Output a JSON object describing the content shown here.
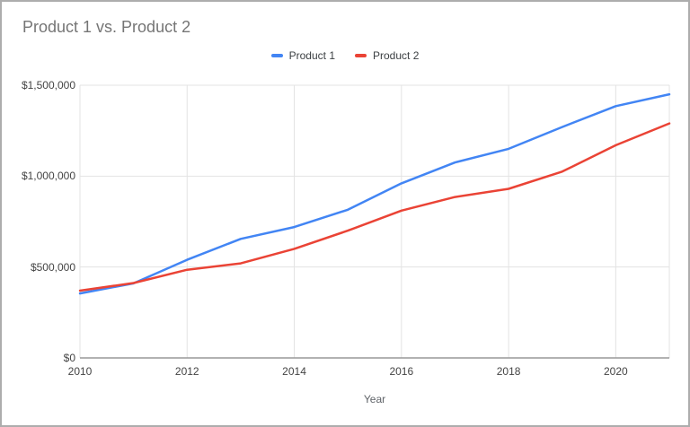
{
  "window": {
    "background": "#ffffff",
    "border_color": "#adadad"
  },
  "chart": {
    "title": "Product 1 vs. Product 2",
    "title_color": "#757575"
  },
  "chart_data": {
    "type": "line",
    "title": "Product 1 vs. Product 2",
    "xlabel": "Year",
    "ylabel": "",
    "legend_position": "top-center",
    "grid": true,
    "x": [
      2010,
      2011,
      2012,
      2013,
      2014,
      2015,
      2016,
      2017,
      2018,
      2019,
      2020,
      2021
    ],
    "series": [
      {
        "name": "Product 1",
        "color": "#4285f4",
        "values": [
          355000,
          410000,
          540000,
          655000,
          720000,
          815000,
          960000,
          1075000,
          1150000,
          1270000,
          1385000,
          1450000
        ]
      },
      {
        "name": "Product 2",
        "color": "#ea4335",
        "values": [
          370000,
          412000,
          485000,
          520000,
          600000,
          700000,
          810000,
          885000,
          930000,
          1025000,
          1170000,
          1290000
        ]
      }
    ],
    "xlim": [
      2010,
      2021
    ],
    "ylim": [
      0,
      1500000
    ],
    "x_ticks": {
      "values": [
        2010,
        2012,
        2014,
        2016,
        2018,
        2020
      ],
      "labels": [
        "2010",
        "2012",
        "2014",
        "2016",
        "2018",
        "2020"
      ]
    },
    "y_ticks": {
      "values": [
        0,
        500000,
        1000000,
        1500000
      ],
      "labels": [
        "$0",
        "$500,000",
        "$1,000,000",
        "$1,500,000"
      ]
    },
    "colors": {
      "gridline": "#e3e3e3",
      "axis_line": "#999999",
      "tick_label": "#444444",
      "axis_title": "#5f6368"
    }
  }
}
